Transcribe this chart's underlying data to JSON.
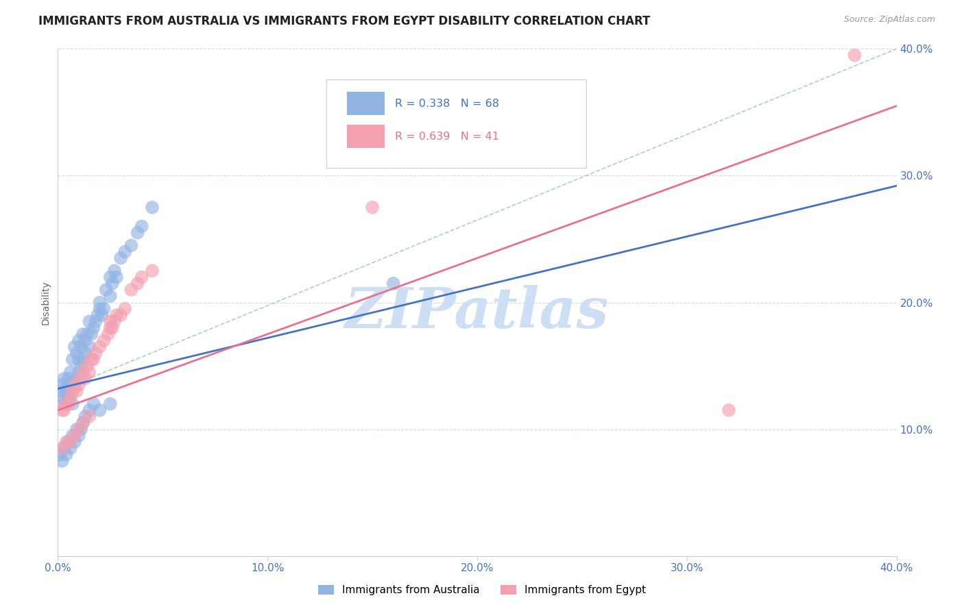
{
  "title": "IMMIGRANTS FROM AUSTRALIA VS IMMIGRANTS FROM EGYPT DISABILITY CORRELATION CHART",
  "source": "Source: ZipAtlas.com",
  "ylabel": "Disability",
  "xlabel": "",
  "xlim": [
    0.0,
    0.4
  ],
  "ylim": [
    0.0,
    0.4
  ],
  "xticks": [
    0.0,
    0.1,
    0.2,
    0.3,
    0.4
  ],
  "yticks": [
    0.1,
    0.2,
    0.3,
    0.4
  ],
  "xtick_labels": [
    "0.0%",
    "10.0%",
    "20.0%",
    "30.0%",
    "40.0%"
  ],
  "ytick_labels": [
    "10.0%",
    "20.0%",
    "30.0%",
    "40.0%"
  ],
  "australia_color": "#92b4e3",
  "egypt_color": "#f4a0b0",
  "trendline_australia_color": "#4472c4",
  "trendline_egypt_color": "#e87090",
  "diagonal_color": "#a8c4e0",
  "watermark": "ZIPatlas",
  "watermark_color": "#ccdff5",
  "title_fontsize": 12,
  "tick_label_color": "#4472c4",
  "background_color": "#ffffff",
  "grid_color": "#d0daea",
  "aus_intercept": 0.132,
  "aus_slope": 0.4,
  "egy_intercept": 0.115,
  "egy_slope": 0.6,
  "australia_x": [
    0.001,
    0.002,
    0.002,
    0.003,
    0.003,
    0.004,
    0.004,
    0.005,
    0.005,
    0.005,
    0.006,
    0.006,
    0.007,
    0.007,
    0.008,
    0.008,
    0.009,
    0.009,
    0.01,
    0.01,
    0.01,
    0.011,
    0.011,
    0.012,
    0.012,
    0.013,
    0.013,
    0.014,
    0.015,
    0.015,
    0.016,
    0.017,
    0.018,
    0.019,
    0.02,
    0.02,
    0.021,
    0.022,
    0.023,
    0.025,
    0.025,
    0.026,
    0.027,
    0.028,
    0.03,
    0.032,
    0.035,
    0.038,
    0.04,
    0.045,
    0.001,
    0.002,
    0.003,
    0.004,
    0.005,
    0.006,
    0.007,
    0.008,
    0.009,
    0.01,
    0.011,
    0.012,
    0.013,
    0.015,
    0.017,
    0.02,
    0.025,
    0.16
  ],
  "australia_y": [
    0.13,
    0.125,
    0.135,
    0.12,
    0.14,
    0.13,
    0.12,
    0.125,
    0.135,
    0.14,
    0.13,
    0.145,
    0.12,
    0.155,
    0.135,
    0.165,
    0.14,
    0.16,
    0.145,
    0.155,
    0.17,
    0.15,
    0.165,
    0.155,
    0.175,
    0.16,
    0.17,
    0.175,
    0.165,
    0.185,
    0.175,
    0.18,
    0.185,
    0.19,
    0.195,
    0.2,
    0.19,
    0.195,
    0.21,
    0.205,
    0.22,
    0.215,
    0.225,
    0.22,
    0.235,
    0.24,
    0.245,
    0.255,
    0.26,
    0.275,
    0.08,
    0.075,
    0.085,
    0.08,
    0.09,
    0.085,
    0.095,
    0.09,
    0.1,
    0.095,
    0.1,
    0.105,
    0.11,
    0.115,
    0.12,
    0.115,
    0.12,
    0.215
  ],
  "egypt_x": [
    0.002,
    0.003,
    0.004,
    0.005,
    0.006,
    0.007,
    0.008,
    0.009,
    0.01,
    0.011,
    0.012,
    0.013,
    0.014,
    0.015,
    0.016,
    0.017,
    0.018,
    0.02,
    0.022,
    0.024,
    0.025,
    0.026,
    0.027,
    0.028,
    0.03,
    0.032,
    0.035,
    0.038,
    0.04,
    0.045,
    0.002,
    0.004,
    0.006,
    0.008,
    0.01,
    0.012,
    0.015,
    0.025,
    0.15,
    0.32,
    0.38
  ],
  "egypt_y": [
    0.115,
    0.115,
    0.12,
    0.12,
    0.125,
    0.13,
    0.135,
    0.13,
    0.135,
    0.14,
    0.145,
    0.14,
    0.15,
    0.145,
    0.155,
    0.155,
    0.16,
    0.165,
    0.17,
    0.175,
    0.18,
    0.18,
    0.185,
    0.19,
    0.19,
    0.195,
    0.21,
    0.215,
    0.22,
    0.225,
    0.085,
    0.09,
    0.09,
    0.095,
    0.1,
    0.105,
    0.11,
    0.185,
    0.275,
    0.115,
    0.395
  ]
}
